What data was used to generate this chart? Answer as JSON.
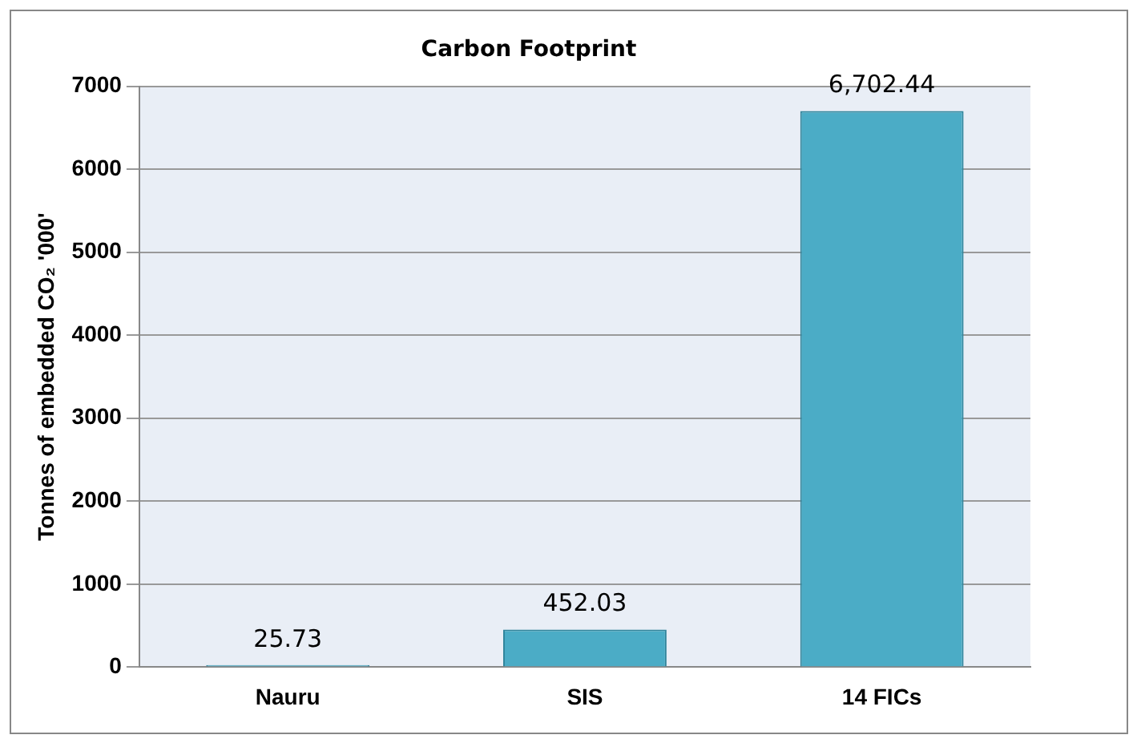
{
  "chart_data": {
    "type": "bar",
    "title": "Carbon Footprint",
    "ylabel": "Tonnes of embedded CO₂ '000'",
    "categories": [
      "Nauru",
      "SIS",
      "14 FICs"
    ],
    "values": [
      25.73,
      452.03,
      6702.44
    ],
    "value_labels": [
      "25.73",
      "452.03",
      "6,702.44"
    ],
    "color": "#4bacc6",
    "ylim": [
      0,
      7000
    ],
    "yticks": [
      0,
      1000,
      2000,
      3000,
      4000,
      5000,
      6000,
      7000
    ],
    "grid": "y",
    "legend": false
  }
}
